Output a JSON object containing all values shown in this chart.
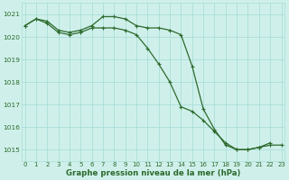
{
  "hours": [
    0,
    1,
    2,
    3,
    4,
    5,
    6,
    7,
    8,
    9,
    10,
    11,
    12,
    13,
    14,
    15,
    16,
    17,
    18,
    19,
    20,
    21,
    22,
    23
  ],
  "series1": [
    1020.5,
    1020.8,
    1020.7,
    1020.3,
    1020.2,
    1020.3,
    1020.5,
    1020.9,
    1020.9,
    1020.8,
    1020.5,
    1020.4,
    1020.4,
    1020.3,
    1020.1,
    1018.7,
    1016.8,
    1015.9,
    1015.2,
    1015.0,
    1015.0,
    1015.1,
    1015.3
  ],
  "series2": [
    1020.5,
    1020.8,
    1020.6,
    1020.2,
    1020.1,
    1020.2,
    1020.4,
    1020.4,
    1020.4,
    1020.3,
    1020.1,
    1019.5,
    1018.8,
    1018.0,
    1016.9,
    1016.7,
    1016.3,
    1015.8,
    1015.3,
    1015.0,
    1015.0,
    1015.1,
    1015.2,
    1015.2
  ],
  "bg_color": "#cff0ea",
  "grid_color": "#aaddda",
  "line_color": "#2d6a2d",
  "xlabel": "Graphe pression niveau de la mer (hPa)",
  "ylim": [
    1014.5,
    1021.5
  ],
  "xlim": [
    -0.3,
    23.3
  ],
  "yticks": [
    1015,
    1016,
    1017,
    1018,
    1019,
    1020,
    1021
  ],
  "xticks": [
    0,
    1,
    2,
    3,
    4,
    5,
    6,
    7,
    8,
    9,
    10,
    11,
    12,
    13,
    14,
    15,
    16,
    17,
    18,
    19,
    20,
    21,
    22,
    23
  ],
  "xlabel_color": "#2d6a2d",
  "tick_color": "#2d6a2d",
  "tick_fontsize": 5.0,
  "xlabel_fontsize": 6.2,
  "linewidth": 0.9,
  "markersize": 3.0
}
